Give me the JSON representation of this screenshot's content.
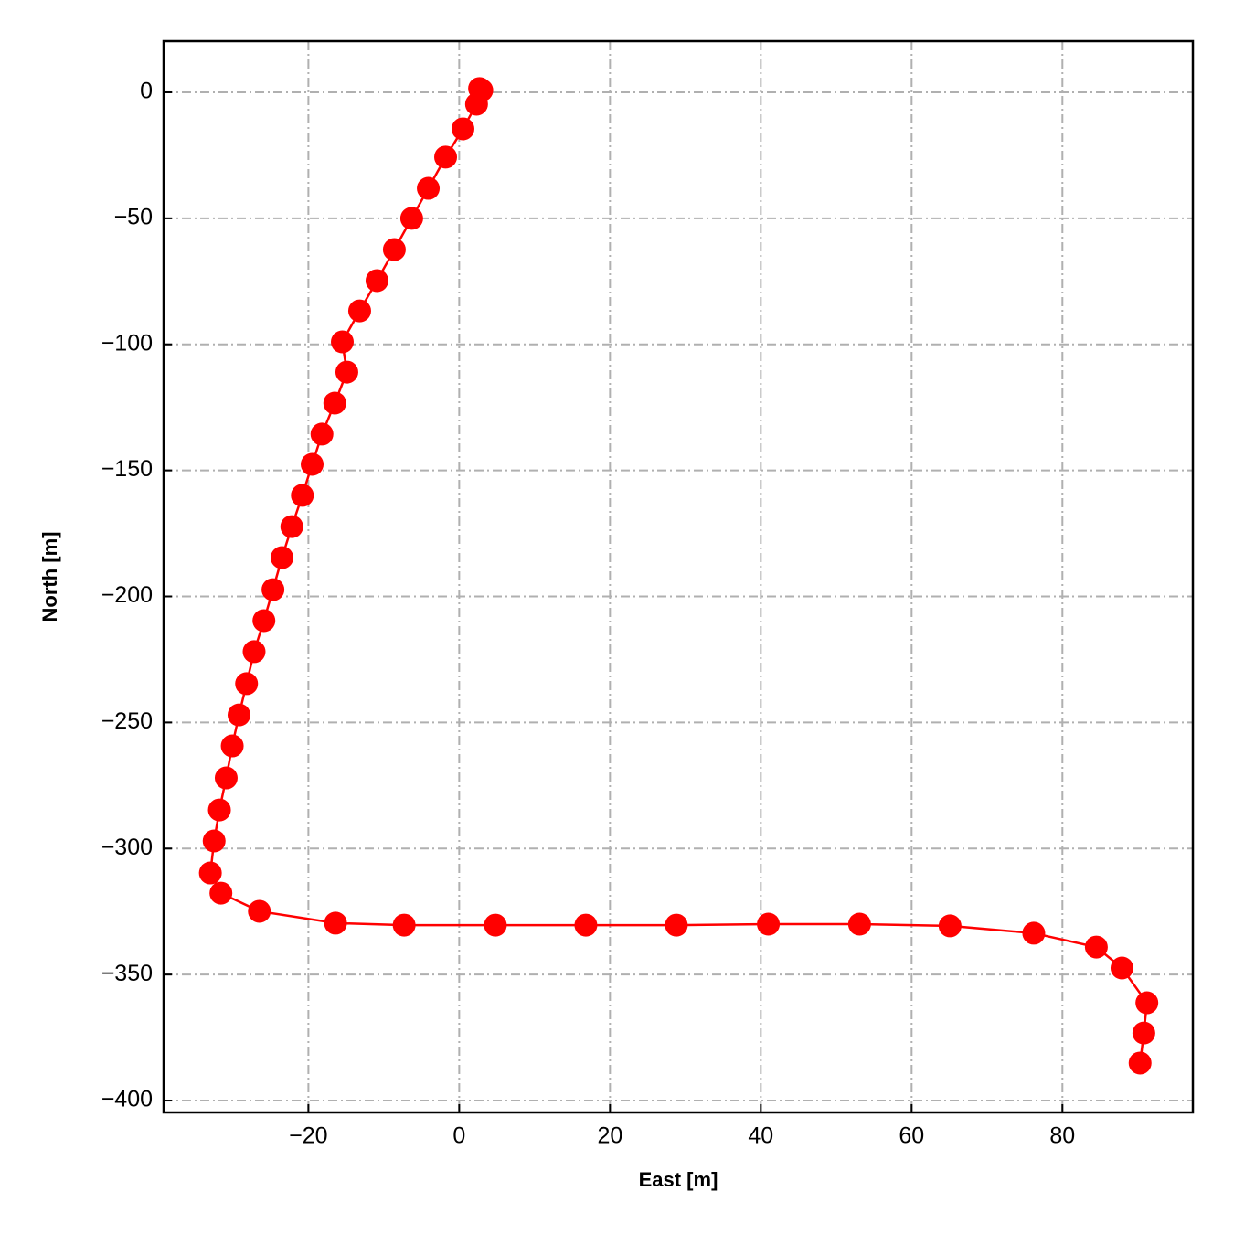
{
  "chart_data": {
    "type": "line",
    "xlabel": "East [m]",
    "ylabel": "North [m]",
    "x": [
      2.7,
      3.0,
      2.3,
      0.5,
      -1.8,
      -4.1,
      -6.3,
      -8.6,
      -10.9,
      -13.2,
      -15.5,
      -14.9,
      -16.5,
      -18.2,
      -19.5,
      -20.8,
      -22.2,
      -23.5,
      -24.7,
      -25.9,
      -27.2,
      -28.2,
      -29.2,
      -30.1,
      -30.9,
      -31.8,
      -32.5,
      -33.0,
      -31.6,
      -26.5,
      -16.4,
      -7.3,
      4.8,
      16.8,
      28.8,
      41.0,
      53.1,
      65.1,
      76.2,
      84.5,
      87.9,
      91.2,
      90.8,
      90.3
    ],
    "series": [
      {
        "color": "#ff0000",
        "values": [
          1.5,
          0.8,
          -4.7,
          -14.5,
          -25.7,
          -38.1,
          -50.0,
          -62.4,
          -74.7,
          -86.7,
          -99.0,
          -111.0,
          -123.3,
          -135.6,
          -147.6,
          -159.9,
          -172.3,
          -184.6,
          -197.3,
          -209.6,
          -221.9,
          -234.6,
          -247.0,
          -259.3,
          -272.0,
          -284.7,
          -297.0,
          -309.7,
          -317.7,
          -324.9,
          -329.6,
          -330.4,
          -330.4,
          -330.4,
          -330.4,
          -330.0,
          -330.0,
          -330.7,
          -333.6,
          -339.1,
          -347.4,
          -361.2,
          -373.2,
          -385.1
        ]
      }
    ],
    "xlim": [
      -39.2,
      97.3
    ],
    "ylim": [
      -404.7,
      20.3
    ],
    "xticks": [
      {
        "value": -20,
        "label": "−20"
      },
      0,
      20,
      40,
      60,
      80
    ],
    "yticks": [
      0,
      {
        "value": -50,
        "label": "−50"
      },
      {
        "value": -100,
        "label": "−100"
      },
      {
        "value": -150,
        "label": "−150"
      },
      {
        "value": -200,
        "label": "−200"
      },
      {
        "value": -250,
        "label": "−250"
      },
      {
        "value": -300,
        "label": "−300"
      },
      {
        "value": -350,
        "label": "−350"
      },
      {
        "value": -400,
        "label": "−400"
      }
    ],
    "grid": true
  }
}
